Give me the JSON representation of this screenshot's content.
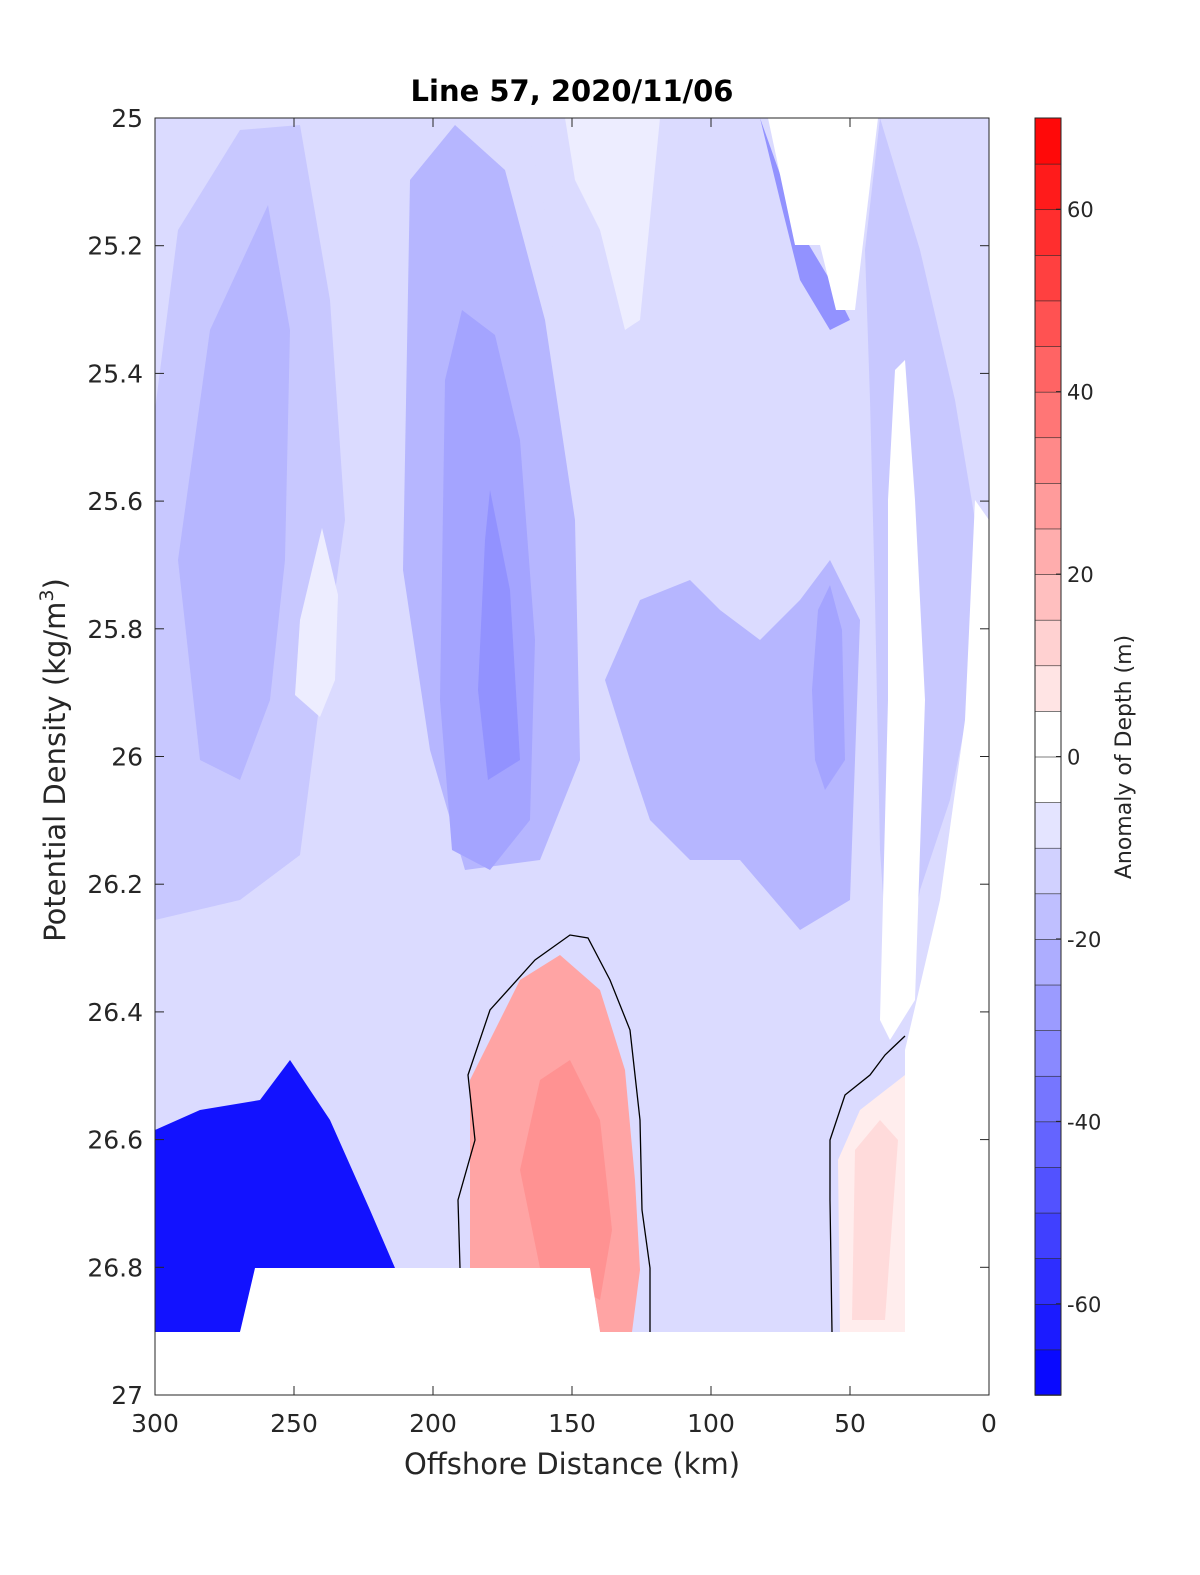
{
  "chart_data": {
    "type": "heatmap",
    "subtype": "filled-contour",
    "title": "Line 57, 2020/11/06",
    "xlabel": "Offshore Distance (km)",
    "ylabel_main": "Potential Density (kg/m",
    "ylabel_sup": "3",
    "ylabel_close": ")",
    "xlim": [
      300,
      0
    ],
    "ylim": [
      25,
      27
    ],
    "x_reversed": true,
    "y_reversed": true,
    "x_ticks": [
      "300",
      "250",
      "200",
      "150",
      "100",
      "50",
      "0"
    ],
    "x_tick_values": [
      300,
      250,
      200,
      150,
      100,
      50,
      0
    ],
    "y_ticks": [
      "25",
      "25.2",
      "25.4",
      "25.6",
      "25.8",
      "26",
      "26.2",
      "26.4",
      "26.6",
      "26.8",
      "27"
    ],
    "y_tick_values": [
      25,
      25.2,
      25.4,
      25.6,
      25.8,
      26,
      26.2,
      26.4,
      26.6,
      26.8,
      27
    ],
    "colorbar": {
      "label": "Anomaly of Depth (m)",
      "range": [
        -70,
        70
      ],
      "level_step": 5,
      "ticks": [
        "60",
        "40",
        "20",
        "0",
        "-20",
        "-40",
        "-60"
      ],
      "tick_values": [
        60,
        40,
        20,
        0,
        -20,
        -40,
        -60
      ],
      "colormap": "blue-white-red",
      "low_color": "#0000ff",
      "mid_color": "#ffffff",
      "high_color": "#ff0000"
    },
    "zero_contour_color": "#000000",
    "regions": [
      {
        "name": "top background",
        "level": -10
      },
      {
        "name": "left upper",
        "level": -15
      },
      {
        "name": "left upper core",
        "level": -20
      },
      {
        "name": "left pale streak",
        "level": -5
      },
      {
        "name": "center-left column",
        "level": -20
      },
      {
        "name": "center-left core",
        "level": -25
      },
      {
        "name": "center-left inner",
        "level": -30
      },
      {
        "name": "center top pale",
        "level": -10
      },
      {
        "name": "center top lightest",
        "level": -5
      },
      {
        "name": "right middle",
        "level": -20
      },
      {
        "name": "right middle core",
        "level": -25
      },
      {
        "name": "right upper edge",
        "level": -30
      },
      {
        "name": "nearshore gradient",
        "level": -15
      },
      {
        "name": "nearshore white band",
        "level": 0
      },
      {
        "name": "left bottom minimum",
        "level": -65
      },
      {
        "name": "central positive anomaly",
        "level": 25,
        "peak": 30
      },
      {
        "name": "nearshore positive anomaly",
        "level": 5,
        "peak": 10
      }
    ]
  }
}
